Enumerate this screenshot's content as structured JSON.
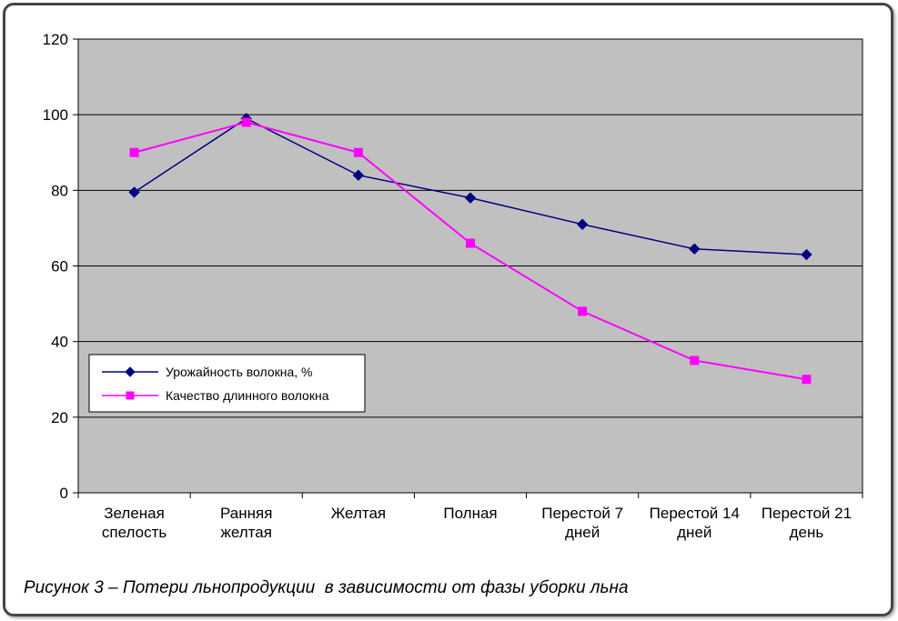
{
  "caption": "Рисунок 3 – Потери льнопродукции  в зависимости от фазы уборки льна",
  "y_axis_ticks": [
    "0",
    "20",
    "40",
    "60",
    "80",
    "100",
    "120"
  ],
  "colors": {
    "plot_background": "#C0C0C0",
    "gridline": "#000000",
    "series1": "#000080",
    "series2": "#FF00FF",
    "legend_background": "#FFFFFF",
    "frame_border": "#454545"
  },
  "chart_data": {
    "type": "line",
    "title": "",
    "xlabel": "",
    "ylabel": "",
    "categories": [
      "Зеленая спелость",
      "Ранняя желтая",
      "Желтая",
      "Полная",
      "Перестой 7 дней",
      "Перестой 14 дней",
      "Перестой 21 день"
    ],
    "series": [
      {
        "name": "Урожайность волокна, %",
        "values": [
          79.5,
          99,
          84,
          78,
          71,
          64.5,
          63
        ],
        "color": "#000080",
        "marker": "diamond"
      },
      {
        "name": "Качество длинного волокна",
        "values": [
          90,
          98,
          90,
          66,
          48,
          35,
          30
        ],
        "color": "#FF00FF",
        "marker": "square"
      }
    ],
    "ylim": [
      0,
      120
    ],
    "ytick_step": 20,
    "grid": "horizontal",
    "plot_bg": "#C0C0C0",
    "legend_position": "inside-left-bottom"
  }
}
